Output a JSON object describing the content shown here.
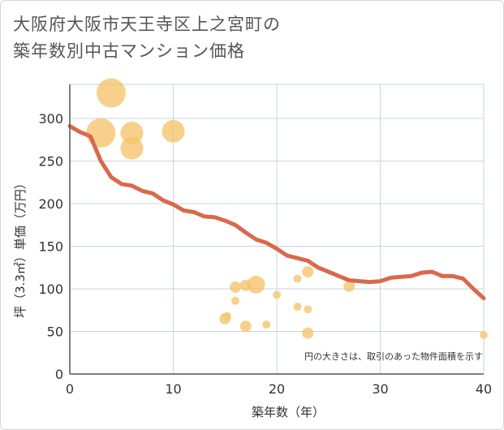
{
  "title": {
    "line1": "大阪府大阪市天王寺区上之宮町の",
    "line2": "築年数別中古マンション価格"
  },
  "colors": {
    "bubble": "#f5c46b",
    "line": "#d9694c",
    "grid": "#c8d4de",
    "text": "#333333",
    "title": "#555555"
  },
  "chart_data": {
    "type": "scatter",
    "xlabel": "築年数（年）",
    "ylabel": "坪（3.3㎡）単価（万円）",
    "xlim": [
      0,
      40
    ],
    "ylim": [
      0,
      340
    ],
    "xticks": [
      0,
      10,
      20,
      30,
      40
    ],
    "yticks": [
      0,
      50,
      100,
      150,
      200,
      250,
      300
    ],
    "xtick_labels": [
      "0",
      "10",
      "20",
      "30",
      "40"
    ],
    "ytick_labels": [
      "0",
      "50",
      "100",
      "150",
      "200",
      "250",
      "300"
    ],
    "grid": true,
    "annotation": "円の大きさは、取引のあった物件面積を示す",
    "scatter_points": [
      {
        "x": 4,
        "y": 330,
        "size": 18
      },
      {
        "x": 3,
        "y": 283,
        "size": 18
      },
      {
        "x": 6,
        "y": 283,
        "size": 14
      },
      {
        "x": 6,
        "y": 265,
        "size": 14
      },
      {
        "x": 10,
        "y": 285,
        "size": 14
      },
      {
        "x": 15,
        "y": 65,
        "size": 7
      },
      {
        "x": 15.2,
        "y": 68,
        "size": 5
      },
      {
        "x": 16,
        "y": 102,
        "size": 7
      },
      {
        "x": 16,
        "y": 86,
        "size": 5
      },
      {
        "x": 17,
        "y": 104,
        "size": 7
      },
      {
        "x": 17,
        "y": 56,
        "size": 7
      },
      {
        "x": 18,
        "y": 105,
        "size": 11
      },
      {
        "x": 19,
        "y": 58,
        "size": 5
      },
      {
        "x": 20,
        "y": 93,
        "size": 5
      },
      {
        "x": 22,
        "y": 112,
        "size": 5
      },
      {
        "x": 22,
        "y": 79,
        "size": 5
      },
      {
        "x": 23,
        "y": 120,
        "size": 7
      },
      {
        "x": 23,
        "y": 76,
        "size": 5
      },
      {
        "x": 23,
        "y": 48,
        "size": 7
      },
      {
        "x": 27,
        "y": 103,
        "size": 7
      },
      {
        "x": 40,
        "y": 46,
        "size": 5
      }
    ],
    "trend_line": {
      "x": [
        0,
        1,
        2,
        3,
        4,
        5,
        6,
        7,
        8,
        9,
        10,
        11,
        12,
        13,
        14,
        15,
        16,
        17,
        18,
        19,
        20,
        21,
        22,
        23,
        24,
        25,
        26,
        27,
        28,
        29,
        30,
        31,
        32,
        33,
        34,
        35,
        36,
        37,
        38,
        39,
        40
      ],
      "y": [
        291,
        284,
        279,
        250,
        231,
        223,
        221,
        215,
        212,
        204,
        199,
        192,
        190,
        185,
        184,
        180,
        175,
        166,
        158,
        154,
        147,
        139,
        136,
        133,
        125,
        120,
        115,
        110,
        109,
        108,
        109,
        113,
        114,
        115,
        119,
        120,
        115,
        115,
        112,
        100,
        89
      ]
    }
  }
}
